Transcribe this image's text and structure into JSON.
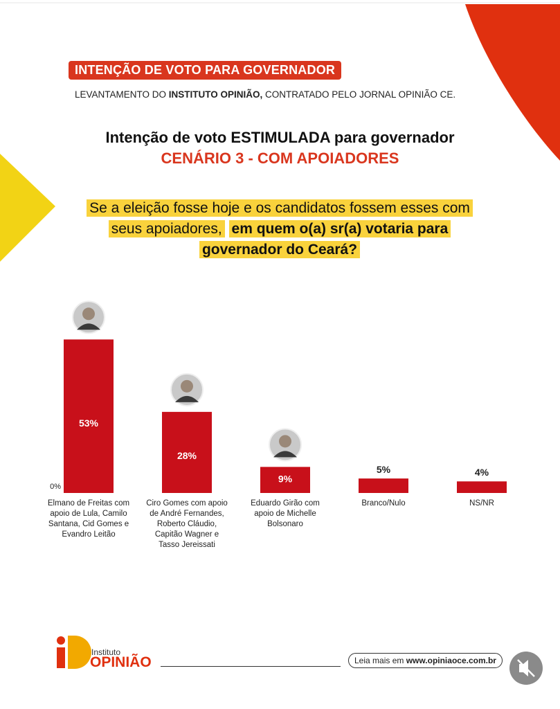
{
  "header": {
    "badge": "INTENÇÃO DE VOTO PARA GOVERNADOR",
    "survey_parts": [
      "LEVANTAMENTO DO ",
      "INSTITUTO OPINIÃO,",
      " CONTRATADO PELO JORNAL OPINIÃO CE."
    ]
  },
  "question": {
    "plain": "Se a eleição fosse hoje e os candidatos fossem esses com seus apoiadores,",
    "bold": "em quem o(a) sr(a) votaria para governador do Ceará?"
  },
  "chart_data": {
    "type": "bar",
    "title": "Intenção de voto ESTIMULADA para governador",
    "subtitle": "CENÁRIO 3 - COM APOIADORES",
    "categories": [
      "Elmano de Freitas com apoio de Lula, Camilo Santana, Cid Gomes e Evandro Leitão",
      "Ciro Gomes com apoio de André Fernandes, Roberto Cláudio, Capitão Wagner e Tasso Jereissati",
      "Eduardo Girão com apoio de Michelle Bolsonaro",
      "Branco/Nulo",
      "NS/NR"
    ],
    "values": [
      53,
      28,
      9,
      5,
      4
    ],
    "value_labels": [
      "53%",
      "28%",
      "9%",
      "5%",
      "4%"
    ],
    "color": "#c8101a",
    "ylim": [
      0,
      60
    ],
    "yticks": [
      {
        "value": 0,
        "label": "0%"
      }
    ]
  },
  "footer": {
    "logo_small": "Instituto",
    "logo_big": "OPINIÃO",
    "read_more": "Leia mais em",
    "url": "www.opiniaoce.com.br"
  }
}
